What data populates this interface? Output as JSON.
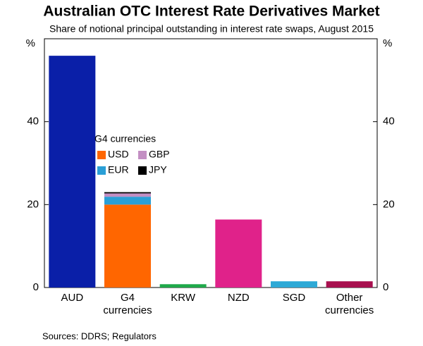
{
  "chart_data": {
    "type": "bar",
    "title": "Australian OTC Interest Rate Derivatives Market",
    "subtitle": "Share of notional principal outstanding in interest rate swaps, August 2015",
    "y_unit": "%",
    "categories": [
      "AUD",
      "G4 currencies",
      "KRW",
      "NZD",
      "SGD",
      "Other currencies"
    ],
    "values": [
      55.9,
      null,
      0.8,
      16.4,
      1.5,
      1.5
    ],
    "colors": [
      "#0a1fa8",
      null,
      "#1fa94a",
      "#e0228a",
      "#2ea9d6",
      "#a8104f"
    ],
    "legend_title": "G4 currencies",
    "series": [
      {
        "name": "USD",
        "color": "#ff6600",
        "values": [
          null,
          20,
          null,
          null,
          null,
          null
        ]
      },
      {
        "name": "EUR",
        "color": "#2a9fd6",
        "values": [
          null,
          1.9,
          null,
          null,
          null,
          null
        ]
      },
      {
        "name": "GBP",
        "color": "#c38fc3",
        "values": [
          null,
          0.8,
          null,
          null,
          null,
          null
        ]
      },
      {
        "name": "JPY",
        "color": "#000000",
        "values": [
          null,
          0.3,
          null,
          null,
          null,
          null
        ]
      }
    ],
    "ylim": [
      0,
      60
    ],
    "yticks": [
      0,
      20,
      40
    ],
    "source": "Sources:    DDRS; Regulators"
  }
}
